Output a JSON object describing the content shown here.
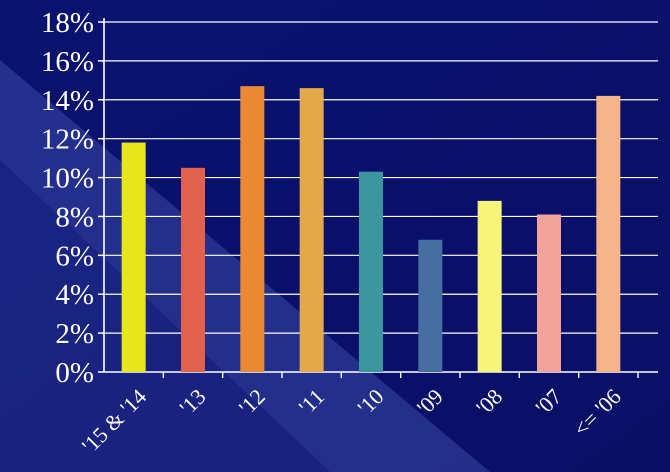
{
  "chart_data": {
    "type": "bar",
    "title": "",
    "xlabel": "",
    "ylabel": "",
    "categories": [
      "'15 & '14",
      "'13",
      "'12",
      "'11",
      "'10",
      "'09",
      "'08",
      "'07",
      "<= '06"
    ],
    "values": [
      11.8,
      10.5,
      14.7,
      14.6,
      10.3,
      6.8,
      8.8,
      8.1,
      14.2
    ],
    "bar_colors": [
      "#e6e61a",
      "#e2614c",
      "#ea8a35",
      "#e3a84a",
      "#3b969e",
      "#466fa0",
      "#f6f57a",
      "#f2a39c",
      "#f5b48a"
    ],
    "ylim": [
      0,
      18
    ],
    "yticks": [
      "0%",
      "2%",
      "4%",
      "6%",
      "8%",
      "10%",
      "12%",
      "14%",
      "16%",
      "18%"
    ],
    "grid": true,
    "background_color": "#0a1170",
    "text_color": "#ffffff",
    "grid_color": "#ffffff"
  }
}
